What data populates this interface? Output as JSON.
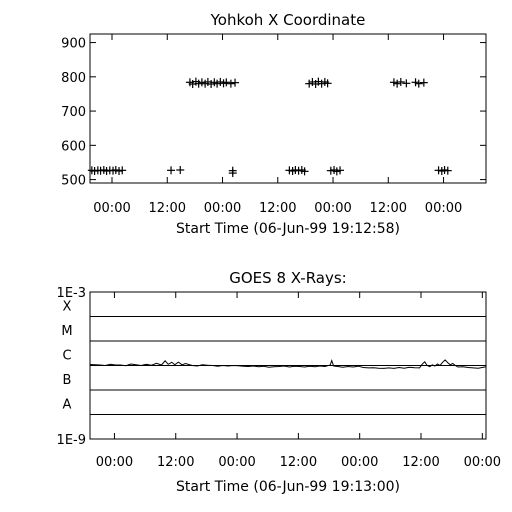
{
  "chart_data": [
    {
      "type": "scatter",
      "title": "Yohkoh X Coordinate",
      "xlabel": "Start Time (06-Jun-99 19:12:58)",
      "x_ticks": [
        "00:00",
        "12:00",
        "00:00",
        "12:00",
        "00:00",
        "12:00",
        "00:00"
      ],
      "x_tick_hours": [
        4.78,
        16.78,
        28.78,
        40.78,
        52.78,
        64.78,
        76.78
      ],
      "xlim_hours": [
        0,
        86
      ],
      "y_ticks": [
        "500",
        "600",
        "700",
        "800",
        "900"
      ],
      "y_tick_values": [
        500,
        600,
        700,
        800,
        900
      ],
      "ylim": [
        490,
        925
      ],
      "marker": "+",
      "points": [
        {
          "x": 0.4,
          "y": 527
        },
        {
          "x": 1.0,
          "y": 525
        },
        {
          "x": 1.7,
          "y": 527
        },
        {
          "x": 2.3,
          "y": 526
        },
        {
          "x": 3.0,
          "y": 528
        },
        {
          "x": 3.6,
          "y": 525
        },
        {
          "x": 4.3,
          "y": 527
        },
        {
          "x": 5.0,
          "y": 526
        },
        {
          "x": 5.6,
          "y": 528
        },
        {
          "x": 6.3,
          "y": 525
        },
        {
          "x": 7.0,
          "y": 527
        },
        {
          "x": 17.6,
          "y": 527
        },
        {
          "x": 19.6,
          "y": 528
        },
        {
          "x": 21.7,
          "y": 784
        },
        {
          "x": 22.3,
          "y": 779
        },
        {
          "x": 23.0,
          "y": 786
        },
        {
          "x": 23.6,
          "y": 780
        },
        {
          "x": 24.3,
          "y": 784
        },
        {
          "x": 25.0,
          "y": 780
        },
        {
          "x": 25.6,
          "y": 785
        },
        {
          "x": 26.3,
          "y": 779
        },
        {
          "x": 27.0,
          "y": 784
        },
        {
          "x": 27.6,
          "y": 780
        },
        {
          "x": 28.3,
          "y": 785
        },
        {
          "x": 29.0,
          "y": 781
        },
        {
          "x": 29.6,
          "y": 784
        },
        {
          "x": 30.6,
          "y": 780
        },
        {
          "x": 31.5,
          "y": 783
        },
        {
          "x": 31.0,
          "y": 526
        },
        {
          "x": 31.0,
          "y": 519
        },
        {
          "x": 43.3,
          "y": 527
        },
        {
          "x": 44.0,
          "y": 525
        },
        {
          "x": 44.6,
          "y": 528
        },
        {
          "x": 45.3,
          "y": 526
        },
        {
          "x": 46.0,
          "y": 528
        },
        {
          "x": 46.6,
          "y": 524
        },
        {
          "x": 47.6,
          "y": 780
        },
        {
          "x": 48.3,
          "y": 785
        },
        {
          "x": 49.0,
          "y": 779
        },
        {
          "x": 49.6,
          "y": 786
        },
        {
          "x": 50.3,
          "y": 780
        },
        {
          "x": 51.0,
          "y": 785
        },
        {
          "x": 51.6,
          "y": 781
        },
        {
          "x": 52.3,
          "y": 526
        },
        {
          "x": 53.0,
          "y": 528
        },
        {
          "x": 53.6,
          "y": 524
        },
        {
          "x": 54.3,
          "y": 527
        },
        {
          "x": 66.0,
          "y": 784
        },
        {
          "x": 66.7,
          "y": 780
        },
        {
          "x": 67.5,
          "y": 785
        },
        {
          "x": 68.7,
          "y": 781
        },
        {
          "x": 70.7,
          "y": 784
        },
        {
          "x": 71.4,
          "y": 780
        },
        {
          "x": 72.5,
          "y": 783
        },
        {
          "x": 75.7,
          "y": 527
        },
        {
          "x": 76.4,
          "y": 525
        },
        {
          "x": 77.0,
          "y": 528
        },
        {
          "x": 77.7,
          "y": 526
        }
      ]
    },
    {
      "type": "line",
      "title": "GOES 8 X-Rays:",
      "xlabel": "Start Time (06-Jun-99 19:13:00)",
      "x_ticks": [
        "00:00",
        "12:00",
        "00:00",
        "12:00",
        "00:00",
        "12:00",
        "00:00"
      ],
      "x_tick_hours": [
        4.78,
        16.78,
        28.78,
        40.78,
        52.78,
        64.78,
        76.78
      ],
      "xlim_hours": [
        0,
        77.5
      ],
      "y_scale": "log",
      "y_tick_labels": [
        "1E-9",
        "A",
        "B",
        "C",
        "M",
        "X",
        "1E-3"
      ],
      "y_tick_exponents": [
        -9,
        -8,
        -7,
        -6,
        -5,
        -4,
        -3
      ],
      "ylim_exponent": [
        -9,
        -3
      ],
      "flare_class_lines": [
        -8,
        -7,
        -6,
        -5,
        -4
      ],
      "series": [
        {
          "values_exponent": [
            [
              0.0,
              -5.96
            ],
            [
              1.0,
              -5.97
            ],
            [
              2.0,
              -5.98
            ],
            [
              3.0,
              -6.0
            ],
            [
              4.0,
              -5.95
            ],
            [
              5.0,
              -5.98
            ],
            [
              6.0,
              -5.98
            ],
            [
              7.0,
              -6.01
            ],
            [
              8.0,
              -5.94
            ],
            [
              9.0,
              -5.97
            ],
            [
              10.0,
              -6.0
            ],
            [
              11.0,
              -5.95
            ],
            [
              12.0,
              -5.99
            ],
            [
              13.0,
              -5.91
            ],
            [
              14.0,
              -5.98
            ],
            [
              14.7,
              -5.81
            ],
            [
              15.3,
              -5.95
            ],
            [
              16.0,
              -5.87
            ],
            [
              16.6,
              -5.97
            ],
            [
              17.3,
              -5.86
            ],
            [
              18.0,
              -5.97
            ],
            [
              18.7,
              -5.92
            ],
            [
              20.0,
              -6.0
            ],
            [
              21.0,
              -6.02
            ],
            [
              22.0,
              -5.97
            ],
            [
              23.0,
              -5.99
            ],
            [
              24.0,
              -6.0
            ],
            [
              25.0,
              -6.03
            ],
            [
              26.0,
              -6.0
            ],
            [
              27.0,
              -6.02
            ],
            [
              28.0,
              -6.0
            ],
            [
              29.0,
              -6.01
            ],
            [
              30.0,
              -6.03
            ],
            [
              31.0,
              -6.04
            ],
            [
              32.0,
              -6.02
            ],
            [
              33.0,
              -6.05
            ],
            [
              34.0,
              -6.03
            ],
            [
              35.0,
              -6.07
            ],
            [
              36.0,
              -6.05
            ],
            [
              37.0,
              -6.04
            ],
            [
              38.0,
              -6.02
            ],
            [
              39.0,
              -6.06
            ],
            [
              40.0,
              -6.03
            ],
            [
              41.0,
              -6.04
            ],
            [
              42.0,
              -6.06
            ],
            [
              43.0,
              -6.03
            ],
            [
              44.0,
              -6.05
            ],
            [
              45.0,
              -6.02
            ],
            [
              46.0,
              -6.04
            ],
            [
              47.0,
              -5.98
            ],
            [
              47.3,
              -5.8
            ],
            [
              47.7,
              -6.02
            ],
            [
              48.5,
              -6.04
            ],
            [
              49.5,
              -6.07
            ],
            [
              50.5,
              -6.04
            ],
            [
              51.5,
              -6.06
            ],
            [
              52.5,
              -6.03
            ],
            [
              53.5,
              -6.08
            ],
            [
              54.5,
              -6.1
            ],
            [
              55.5,
              -6.09
            ],
            [
              56.5,
              -6.11
            ],
            [
              57.5,
              -6.12
            ],
            [
              58.5,
              -6.1
            ],
            [
              59.5,
              -6.12
            ],
            [
              60.5,
              -6.08
            ],
            [
              61.5,
              -6.11
            ],
            [
              62.5,
              -6.07
            ],
            [
              63.5,
              -6.09
            ],
            [
              64.5,
              -6.1
            ],
            [
              65.0,
              -5.95
            ],
            [
              65.5,
              -5.85
            ],
            [
              66.0,
              -6.0
            ],
            [
              66.5,
              -6.05
            ],
            [
              67.0,
              -5.97
            ],
            [
              67.5,
              -6.02
            ],
            [
              68.0,
              -5.94
            ],
            [
              68.5,
              -6.0
            ],
            [
              69.0,
              -5.87
            ],
            [
              69.5,
              -5.77
            ],
            [
              70.0,
              -5.88
            ],
            [
              70.5,
              -5.97
            ],
            [
              71.0,
              -5.92
            ],
            [
              71.5,
              -6.0
            ],
            [
              72.0,
              -6.06
            ],
            [
              73.0,
              -6.05
            ],
            [
              74.0,
              -6.08
            ],
            [
              75.0,
              -6.1
            ],
            [
              76.0,
              -6.11
            ],
            [
              77.0,
              -6.07
            ],
            [
              77.5,
              -6.05
            ]
          ]
        }
      ]
    }
  ]
}
